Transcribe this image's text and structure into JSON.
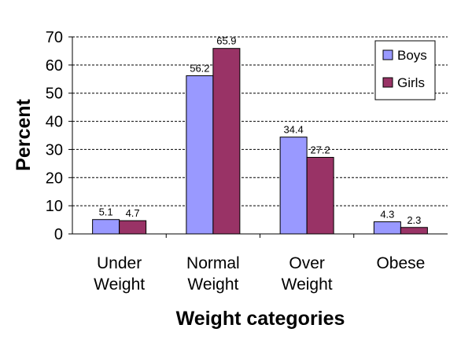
{
  "chart_data": {
    "type": "bar",
    "categories": [
      [
        "Under",
        "Weight"
      ],
      [
        "Normal",
        "Weight"
      ],
      [
        "Over",
        "Weight"
      ],
      [
        "Obese"
      ]
    ],
    "series": [
      {
        "name": "Boys",
        "color": "#9999ff",
        "values": [
          5.1,
          56.2,
          34.4,
          4.3
        ]
      },
      {
        "name": "Girls",
        "color": "#993366",
        "values": [
          4.7,
          65.9,
          27.2,
          2.3
        ]
      }
    ],
    "data_labels": [
      [
        "5.1",
        "56.2",
        "34.4",
        "4.3"
      ],
      [
        "4.7",
        "65.9",
        "27.2",
        "2.3"
      ]
    ],
    "title": "",
    "xlabel": "Weight categories",
    "ylabel": "Percent",
    "ylim": [
      0,
      70
    ],
    "yticks": [
      0,
      10,
      20,
      30,
      40,
      50,
      60,
      70
    ],
    "grid": "dashed horizontal",
    "legend_position": "top-right"
  }
}
